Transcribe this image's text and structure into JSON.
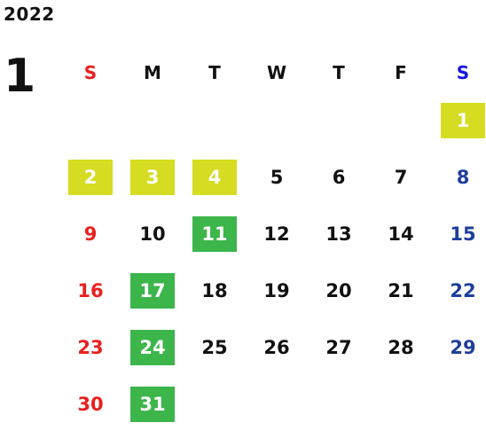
{
  "year": "2022",
  "month": "1",
  "colors": {
    "sunday": "#e8201e",
    "saturday": "#1e3f9a",
    "saturday_header": "#1515e0",
    "weekday": "#111111",
    "holiday_highlight": "#d5dc21",
    "green_highlight": "#3cb54a"
  },
  "weekdays": [
    {
      "label": "S",
      "type": "sun"
    },
    {
      "label": "M",
      "type": "weekday"
    },
    {
      "label": "T",
      "type": "weekday"
    },
    {
      "label": "W",
      "type": "weekday"
    },
    {
      "label": "T",
      "type": "weekday"
    },
    {
      "label": "F",
      "type": "weekday"
    },
    {
      "label": "S",
      "type": "sat"
    }
  ],
  "first_weekday_index": 6,
  "days": [
    {
      "num": "1",
      "highlight": "yellow"
    },
    {
      "num": "2",
      "highlight": "yellow"
    },
    {
      "num": "3",
      "highlight": "yellow"
    },
    {
      "num": "4",
      "highlight": "yellow"
    },
    {
      "num": "5",
      "highlight": ""
    },
    {
      "num": "6",
      "highlight": ""
    },
    {
      "num": "7",
      "highlight": ""
    },
    {
      "num": "8",
      "highlight": ""
    },
    {
      "num": "9",
      "highlight": ""
    },
    {
      "num": "10",
      "highlight": ""
    },
    {
      "num": "11",
      "highlight": "green"
    },
    {
      "num": "12",
      "highlight": ""
    },
    {
      "num": "13",
      "highlight": ""
    },
    {
      "num": "14",
      "highlight": ""
    },
    {
      "num": "15",
      "highlight": ""
    },
    {
      "num": "16",
      "highlight": ""
    },
    {
      "num": "17",
      "highlight": "green"
    },
    {
      "num": "18",
      "highlight": ""
    },
    {
      "num": "19",
      "highlight": ""
    },
    {
      "num": "20",
      "highlight": ""
    },
    {
      "num": "21",
      "highlight": ""
    },
    {
      "num": "22",
      "highlight": ""
    },
    {
      "num": "23",
      "highlight": ""
    },
    {
      "num": "24",
      "highlight": "green"
    },
    {
      "num": "25",
      "highlight": ""
    },
    {
      "num": "26",
      "highlight": ""
    },
    {
      "num": "27",
      "highlight": ""
    },
    {
      "num": "28",
      "highlight": ""
    },
    {
      "num": "29",
      "highlight": ""
    },
    {
      "num": "30",
      "highlight": ""
    },
    {
      "num": "31",
      "highlight": "green"
    }
  ]
}
